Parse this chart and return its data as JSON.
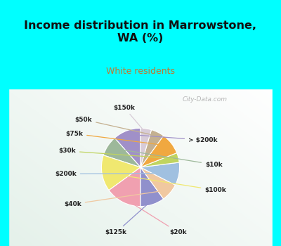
{
  "title": "Income distribution in Marrowstone,\nWA (%)",
  "subtitle": "White residents",
  "title_color": "#111111",
  "subtitle_color": "#c07830",
  "background_color": "#00ffff",
  "labels": [
    "> $200k",
    "$10k",
    "$100k",
    "$20k",
    "$125k",
    "$40k",
    "$200k",
    "$30k",
    "$75k",
    "$50k",
    "$150k"
  ],
  "values": [
    11.5,
    8.5,
    15.0,
    15.0,
    10.0,
    7.5,
    9.5,
    4.0,
    9.0,
    5.5,
    4.5
  ],
  "colors": [
    "#a090c8",
    "#9db89a",
    "#f0e870",
    "#f0a0b0",
    "#9090cc",
    "#f0c8a0",
    "#a0c0e0",
    "#c0d460",
    "#f0a840",
    "#c4b090",
    "#d8ccd8"
  ],
  "startangle": 90,
  "watermark": "City-Data.com"
}
